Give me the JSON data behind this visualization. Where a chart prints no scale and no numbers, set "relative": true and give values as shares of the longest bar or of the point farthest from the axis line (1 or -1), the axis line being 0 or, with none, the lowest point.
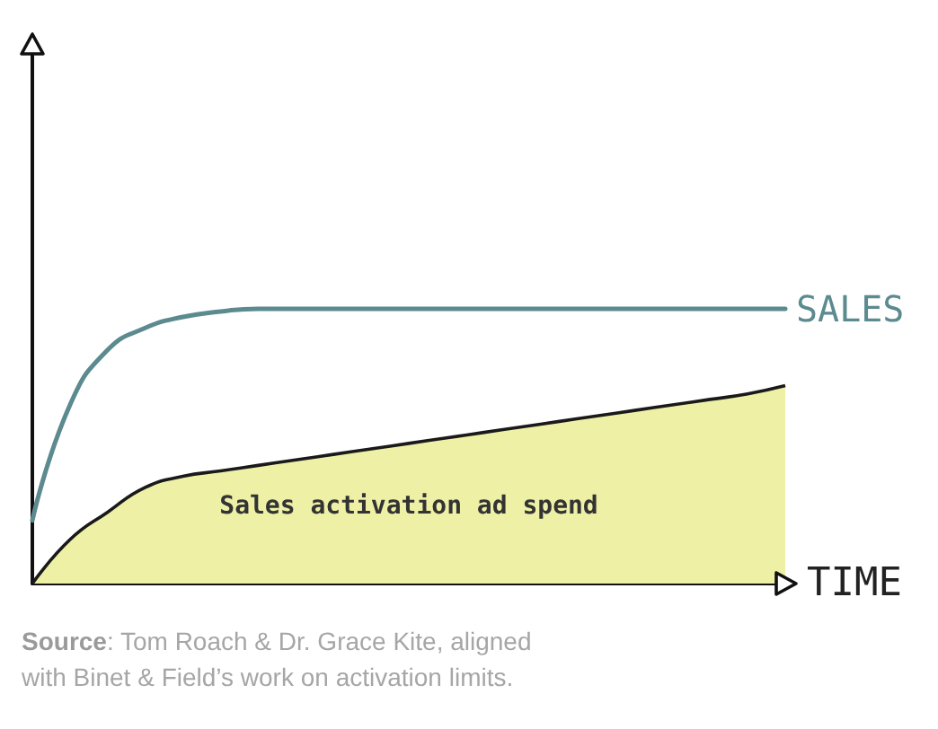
{
  "chart_data": {
    "type": "line",
    "relative": true,
    "xlabel": "TIME",
    "categories": [
      null,
      null,
      null,
      null,
      null,
      null,
      null,
      null,
      null,
      null,
      null,
      null,
      null,
      null,
      null,
      null,
      null,
      null,
      null,
      null,
      null
    ],
    "series": [
      {
        "name": "SALES",
        "color": "#5b8a8f",
        "values": [
          0.23,
          0.65,
          0.85,
          0.93,
          0.97,
          0.99,
          1,
          1,
          1,
          1,
          1,
          1,
          1,
          1,
          1,
          1,
          1,
          1,
          1,
          1,
          1
        ]
      },
      {
        "name": "Sales activation ad spend",
        "type": "area",
        "color": "#eef0a6",
        "values": [
          0,
          0.16,
          0.26,
          0.35,
          0.39,
          0.41,
          0.43,
          0.45,
          0.47,
          0.49,
          0.51,
          0.53,
          0.55,
          0.57,
          0.59,
          0.61,
          0.63,
          0.65,
          0.67,
          0.69,
          0.72
        ]
      }
    ],
    "annotations": [
      "Source: Tom Roach & Dr. Grace Kite, aligned with Binet & Field’s work on activation limits."
    ]
  }
}
